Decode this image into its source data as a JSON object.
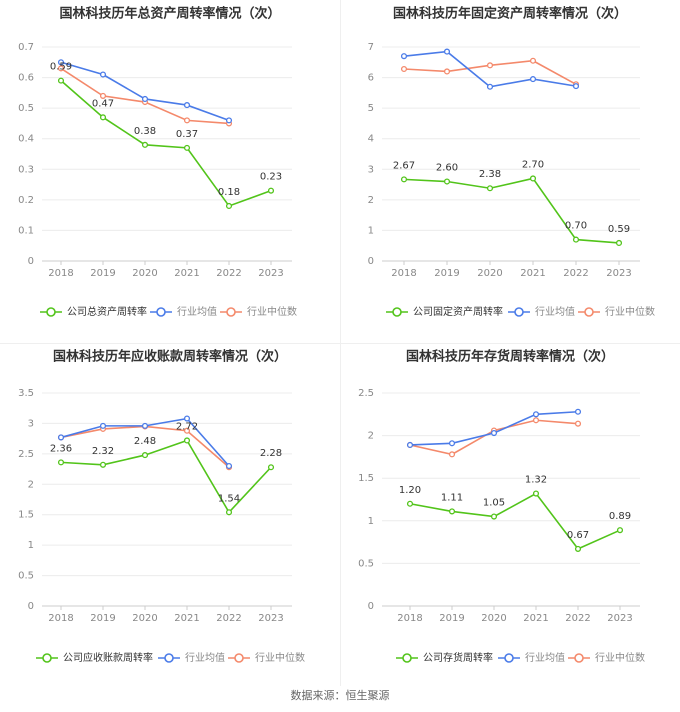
{
  "source_note": "数据来源：恒生聚源",
  "colors": {
    "company": "#52c41a",
    "avg": "#4a7be8",
    "median": "#f4896b"
  },
  "chart_data": [
    {
      "type": "line",
      "title": "国林科技历年总资产周转率情况（次）",
      "categories": [
        "2018",
        "2019",
        "2020",
        "2021",
        "2022",
        "2023"
      ],
      "ylim": [
        0,
        0.7
      ],
      "yticks": [
        "0",
        "0.1",
        "0.2",
        "0.3",
        "0.4",
        "0.5",
        "0.6",
        "0.7"
      ],
      "series": [
        {
          "name": "公司总资产周转率",
          "values": [
            0.59,
            0.47,
            0.38,
            0.37,
            0.18,
            0.23
          ],
          "labels": [
            "0.59",
            "0.47",
            "0.38",
            "0.37",
            "0.18",
            "0.23"
          ]
        },
        {
          "name": "行业均值",
          "values": [
            0.65,
            0.61,
            0.53,
            0.51,
            0.46,
            null
          ]
        },
        {
          "name": "行业中位数",
          "values": [
            0.63,
            0.54,
            0.52,
            0.46,
            0.45,
            null
          ]
        }
      ]
    },
    {
      "type": "line",
      "title": "国林科技历年固定资产周转率情况（次）",
      "categories": [
        "2018",
        "2019",
        "2020",
        "2021",
        "2022",
        "2023"
      ],
      "ylim": [
        0,
        7
      ],
      "yticks": [
        "0",
        "1",
        "2",
        "3",
        "4",
        "5",
        "6",
        "7"
      ],
      "series": [
        {
          "name": "公司固定资产周转率",
          "values": [
            2.67,
            2.6,
            2.38,
            2.7,
            0.7,
            0.59
          ],
          "labels": [
            "2.67",
            "2.60",
            "2.38",
            "2.70",
            "0.70",
            "0.59"
          ]
        },
        {
          "name": "行业均值",
          "values": [
            6.7,
            6.85,
            5.7,
            5.95,
            5.72,
            null
          ]
        },
        {
          "name": "行业中位数",
          "values": [
            6.28,
            6.2,
            6.4,
            6.55,
            5.78,
            null
          ]
        }
      ]
    },
    {
      "type": "line",
      "title": "国林科技历年应收账款周转率情况（次）",
      "categories": [
        "2018",
        "2019",
        "2020",
        "2021",
        "2022",
        "2023"
      ],
      "ylim": [
        0,
        3.5
      ],
      "yticks": [
        "0",
        "0.5",
        "1",
        "1.5",
        "2",
        "2.5",
        "3",
        "3.5"
      ],
      "series": [
        {
          "name": "公司应收账款周转率",
          "values": [
            2.36,
            2.32,
            2.48,
            2.72,
            1.54,
            2.28
          ],
          "labels": [
            "2.36",
            "2.32",
            "2.48",
            "2.72",
            "1.54",
            "2.28"
          ]
        },
        {
          "name": "行业均值",
          "values": [
            2.77,
            2.96,
            2.96,
            3.08,
            2.3,
            null
          ]
        },
        {
          "name": "行业中位数",
          "values": [
            2.77,
            2.91,
            2.95,
            2.88,
            2.28,
            null
          ]
        }
      ]
    },
    {
      "type": "line",
      "title": "国林科技历年存货周转率情况（次）",
      "categories": [
        "2018",
        "2019",
        "2020",
        "2021",
        "2022",
        "2023"
      ],
      "ylim": [
        0,
        2.5
      ],
      "yticks": [
        "0",
        "0.5",
        "1",
        "1.5",
        "2",
        "2.5"
      ],
      "series": [
        {
          "name": "公司存货周转率",
          "values": [
            1.2,
            1.11,
            1.05,
            1.32,
            0.67,
            0.89
          ],
          "labels": [
            "1.20",
            "1.11",
            "1.05",
            "1.32",
            "0.67",
            "0.89"
          ]
        },
        {
          "name": "行业均值",
          "values": [
            1.89,
            1.91,
            2.03,
            2.25,
            2.28,
            null
          ]
        },
        {
          "name": "行业中位数",
          "values": [
            1.89,
            1.78,
            2.06,
            2.18,
            2.14,
            null
          ]
        }
      ]
    }
  ]
}
